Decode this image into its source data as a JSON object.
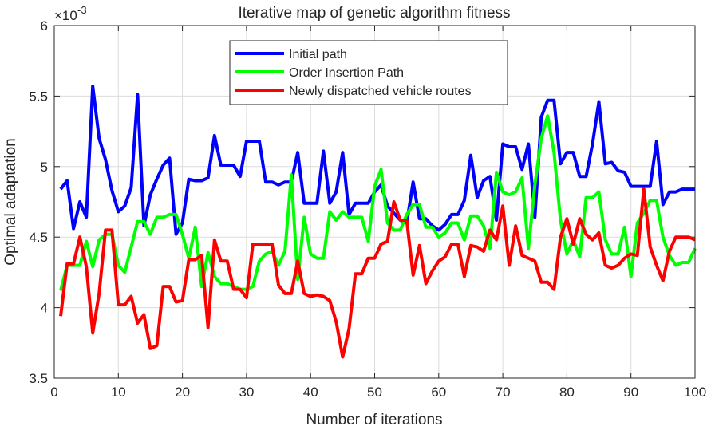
{
  "chart_data": {
    "type": "line",
    "title": "Iterative map of genetic algorithm fitness",
    "xlabel": "Number of iterations",
    "ylabel": "Optimal adaptation",
    "y_exponent_label": "×10",
    "y_exponent_power": "-3",
    "xlim": [
      0,
      100
    ],
    "ylim": [
      3.5,
      6
    ],
    "xticks": [
      "0",
      "10",
      "20",
      "30",
      "40",
      "50",
      "60",
      "70",
      "80",
      "90",
      "100"
    ],
    "yticks": [
      "3.5",
      "4",
      "4.5",
      "5",
      "5.5",
      "6"
    ],
    "grid": true,
    "legend_position": "top-center",
    "x_start": 1,
    "series": [
      {
        "name": "Initial path",
        "color": "#0000ff",
        "values": [
          4.84,
          4.9,
          4.56,
          4.75,
          4.64,
          5.57,
          5.2,
          5.05,
          4.83,
          4.68,
          4.72,
          4.85,
          5.51,
          4.58,
          4.8,
          4.91,
          5.01,
          5.06,
          4.52,
          4.6,
          4.91,
          4.9,
          4.9,
          4.92,
          5.22,
          5.01,
          5.01,
          5.01,
          4.93,
          5.18,
          5.18,
          5.18,
          4.89,
          4.89,
          4.87,
          4.89,
          4.89,
          5.1,
          4.74,
          4.74,
          4.74,
          5.11,
          4.74,
          4.82,
          5.1,
          4.66,
          4.74,
          4.74,
          4.74,
          4.82,
          4.87,
          4.72,
          4.67,
          4.62,
          4.6,
          4.89,
          4.63,
          4.63,
          4.58,
          4.55,
          4.59,
          4.66,
          4.66,
          4.76,
          5.08,
          4.78,
          4.9,
          4.93,
          4.62,
          5.16,
          5.14,
          5.14,
          4.98,
          5.16,
          4.64,
          5.35,
          5.47,
          5.47,
          5.02,
          5.1,
          5.1,
          4.93,
          4.93,
          5.16,
          5.46,
          5.02,
          5.03,
          4.97,
          4.96,
          4.86,
          4.86,
          4.86,
          4.86,
          5.18,
          4.73,
          4.82,
          4.82,
          4.84,
          4.84,
          4.84
        ]
      },
      {
        "name": "Order Insertion Path",
        "color": "#00ff00",
        "values": [
          4.12,
          4.3,
          4.3,
          4.3,
          4.47,
          4.29,
          4.48,
          4.52,
          4.52,
          4.3,
          4.25,
          4.43,
          4.61,
          4.61,
          4.52,
          4.64,
          4.64,
          4.66,
          4.66,
          4.52,
          4.35,
          4.57,
          4.15,
          4.39,
          4.22,
          4.17,
          4.17,
          4.15,
          4.13,
          4.13,
          4.15,
          4.33,
          4.38,
          4.4,
          4.3,
          4.4,
          4.94,
          4.2,
          4.64,
          4.38,
          4.35,
          4.35,
          4.68,
          4.62,
          4.68,
          4.64,
          4.64,
          4.64,
          4.47,
          4.86,
          4.98,
          4.6,
          4.55,
          4.55,
          4.66,
          4.73,
          4.73,
          4.57,
          4.57,
          4.5,
          4.53,
          4.6,
          4.6,
          4.48,
          4.65,
          4.65,
          4.58,
          4.42,
          4.96,
          4.82,
          4.8,
          4.82,
          4.92,
          4.42,
          4.87,
          5.2,
          5.36,
          5.1,
          4.62,
          4.38,
          4.48,
          4.36,
          4.78,
          4.78,
          4.82,
          4.48,
          4.38,
          4.38,
          4.57,
          4.22,
          4.6,
          4.67,
          4.76,
          4.76,
          4.5,
          4.37,
          4.3,
          4.32,
          4.32,
          4.42
        ]
      },
      {
        "name": "Newly dispatched vehicle routes",
        "color": "#ff0000",
        "values": [
          3.94,
          4.31,
          4.31,
          4.5,
          4.29,
          3.82,
          4.1,
          4.55,
          4.55,
          4.02,
          4.02,
          4.08,
          3.89,
          3.95,
          3.71,
          3.73,
          4.15,
          4.15,
          4.04,
          4.05,
          4.34,
          4.34,
          4.37,
          3.86,
          4.48,
          4.33,
          4.33,
          4.13,
          4.13,
          4.07,
          4.45,
          4.45,
          4.45,
          4.45,
          4.16,
          4.1,
          4.1,
          4.33,
          4.1,
          4.08,
          4.09,
          4.08,
          4.05,
          3.9,
          3.65,
          3.85,
          4.24,
          4.24,
          4.35,
          4.35,
          4.45,
          4.47,
          4.75,
          4.62,
          4.62,
          4.23,
          4.44,
          4.17,
          4.26,
          4.33,
          4.36,
          4.45,
          4.45,
          4.22,
          4.44,
          4.43,
          4.4,
          4.55,
          4.48,
          4.72,
          4.3,
          4.58,
          4.37,
          4.35,
          4.33,
          4.18,
          4.18,
          4.13,
          4.5,
          4.63,
          4.45,
          4.63,
          4.52,
          4.48,
          4.53,
          4.3,
          4.28,
          4.3,
          4.35,
          4.38,
          4.37,
          4.84,
          4.43,
          4.3,
          4.19,
          4.4,
          4.5,
          4.5,
          4.5,
          4.48
        ]
      }
    ]
  }
}
